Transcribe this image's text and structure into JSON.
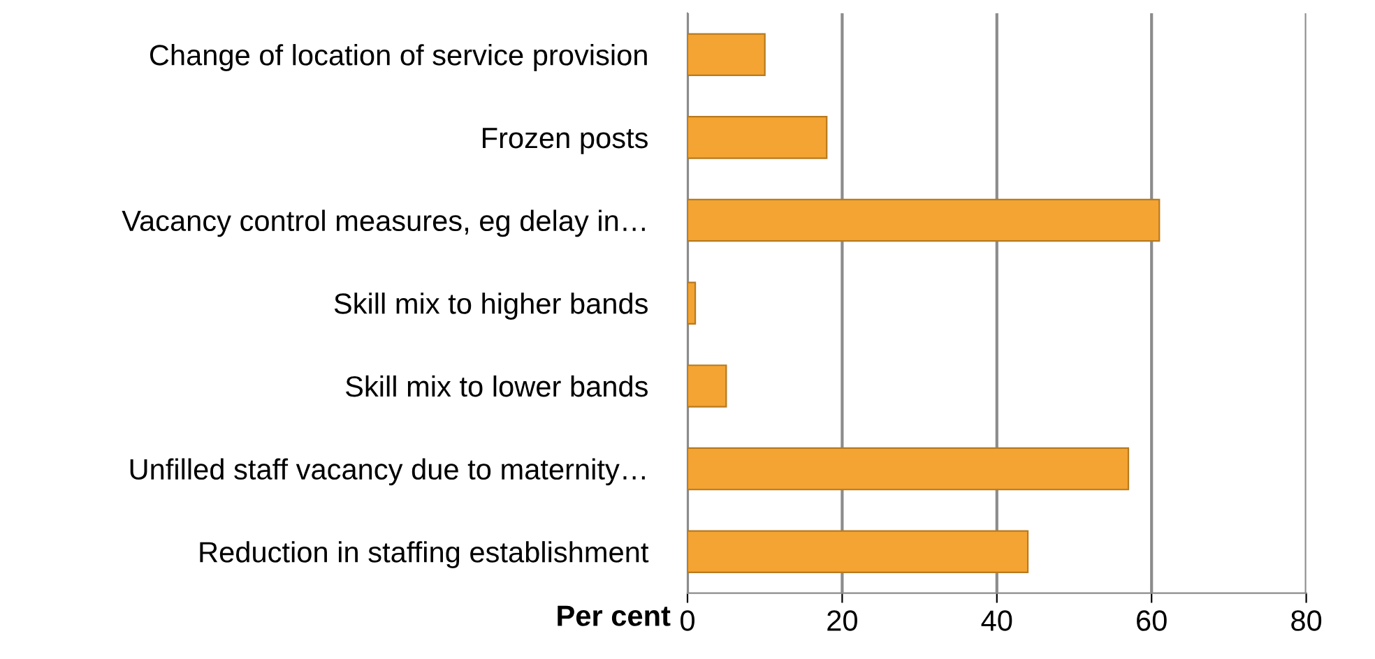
{
  "chart_data": {
    "type": "bar",
    "orientation": "horizontal",
    "xlabel": "Per cent",
    "categories": [
      "Change of location of service provision",
      "Frozen posts",
      "Vacancy control measures, eg delay in…",
      "Skill mix to higher bands",
      "Skill mix to lower bands",
      "Unfilled staff vacancy due to maternity…",
      "Reduction in staffing establishment"
    ],
    "values": [
      10,
      18,
      61,
      1,
      5,
      57,
      44
    ],
    "color": "#f4a433",
    "xlim": [
      0,
      80
    ],
    "xticks": [
      0,
      20,
      40,
      60,
      80
    ],
    "grid": "x"
  }
}
